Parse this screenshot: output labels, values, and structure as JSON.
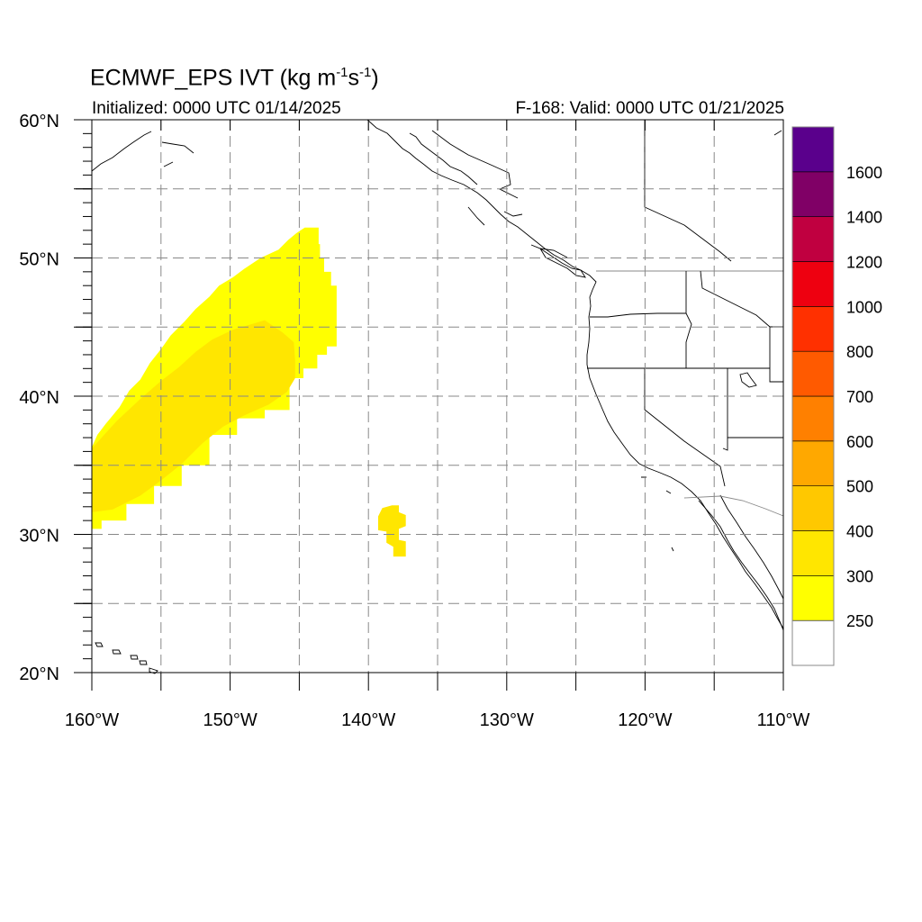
{
  "title": {
    "main": "ECMWF_EPS IVT (kg m",
    "exp1": "-1",
    "mid": "s",
    "exp2": "-1",
    "end": ")"
  },
  "subtitle_left": "Initialized: 0000 UTC 01/14/2025",
  "subtitle_right": "F-168: Valid: 0000 UTC 01/21/2025",
  "map": {
    "lon_range": [
      -160,
      -110
    ],
    "lat_range": [
      20,
      60
    ],
    "lon_labels": [
      {
        "lon": -160,
        "text": "160°W"
      },
      {
        "lon": -150,
        "text": "150°W"
      },
      {
        "lon": -140,
        "text": "140°W"
      },
      {
        "lon": -130,
        "text": "130°W"
      },
      {
        "lon": -120,
        "text": "120°W"
      },
      {
        "lon": -110,
        "text": "110°W"
      }
    ],
    "lat_labels": [
      {
        "lat": 60,
        "text": "60°N"
      },
      {
        "lat": 50,
        "text": "50°N"
      },
      {
        "lat": 40,
        "text": "40°N"
      },
      {
        "lat": 30,
        "text": "30°N"
      },
      {
        "lat": 20,
        "text": "20°N"
      }
    ],
    "gridline_style": "dashed",
    "gridline_lons": [
      -155,
      -150,
      -145,
      -140,
      -135,
      -130,
      -125,
      -120,
      -115
    ],
    "gridline_lats": [
      25,
      30,
      35,
      40,
      45,
      50,
      55
    ],
    "ivt_fields": [
      {
        "level": "250-300",
        "color": "#ffff00",
        "outline": [
          [
            -160,
            30.4
          ],
          [
            -159.3,
            30.4
          ],
          [
            -159.3,
            31
          ],
          [
            -157.5,
            31
          ],
          [
            -157.5,
            32.2
          ],
          [
            -155.5,
            32.2
          ],
          [
            -155.5,
            33.5
          ],
          [
            -153.5,
            33.5
          ],
          [
            -153.5,
            35
          ],
          [
            -151.5,
            35
          ],
          [
            -151.5,
            37.2
          ],
          [
            -149.5,
            37.2
          ],
          [
            -149.5,
            38.4
          ],
          [
            -147.5,
            38.4
          ],
          [
            -147.5,
            39
          ],
          [
            -145.7,
            39
          ],
          [
            -145.7,
            41.3
          ],
          [
            -144.7,
            41.3
          ],
          [
            -144.7,
            42
          ],
          [
            -143.7,
            42
          ],
          [
            -143.7,
            43
          ],
          [
            -143,
            43
          ],
          [
            -143,
            43.6
          ],
          [
            -142.3,
            43.6
          ],
          [
            -142.3,
            45.3
          ],
          [
            -142.3,
            48
          ],
          [
            -142.7,
            48
          ],
          [
            -142.7,
            49
          ],
          [
            -143.2,
            49
          ],
          [
            -143.2,
            50
          ],
          [
            -143.5,
            50
          ],
          [
            -143.5,
            51
          ],
          [
            -143.6,
            51
          ],
          [
            -143.6,
            52.2
          ],
          [
            -144.6,
            52.2
          ],
          [
            -145.2,
            51.8
          ],
          [
            -145.8,
            51.3
          ],
          [
            -146.5,
            50.6
          ],
          [
            -147.8,
            50
          ],
          [
            -149,
            49.2
          ],
          [
            -149.8,
            48.6
          ],
          [
            -150.8,
            48
          ],
          [
            -151.5,
            47.2
          ],
          [
            -152.5,
            46.3
          ],
          [
            -153.3,
            45.4
          ],
          [
            -154.3,
            44.4
          ],
          [
            -155,
            43.4
          ],
          [
            -155.8,
            42.4
          ],
          [
            -156.5,
            41.2
          ],
          [
            -157.3,
            40.4
          ],
          [
            -158,
            39.2
          ],
          [
            -159,
            38
          ],
          [
            -159.6,
            37.2
          ],
          [
            -160,
            36.3
          ]
        ]
      },
      {
        "level": "300-400",
        "color": "#ffe600",
        "outline": [
          [
            -160,
            31.6
          ],
          [
            -158.5,
            31.8
          ],
          [
            -156.5,
            32.8
          ],
          [
            -155,
            33.9
          ],
          [
            -153.5,
            35.1
          ],
          [
            -152,
            36.6
          ],
          [
            -150.5,
            37.8
          ],
          [
            -149,
            38.6
          ],
          [
            -147.2,
            39.4
          ],
          [
            -145.9,
            40.3
          ],
          [
            -145.3,
            41.3
          ],
          [
            -145.3,
            42.6
          ],
          [
            -145.4,
            43.9
          ],
          [
            -146.2,
            44.6
          ],
          [
            -147.5,
            45.5
          ],
          [
            -148.5,
            45.2
          ],
          [
            -149.8,
            44.8
          ],
          [
            -151.3,
            44.1
          ],
          [
            -152.5,
            43.2
          ],
          [
            -153.7,
            42.1
          ],
          [
            -155,
            41.1
          ],
          [
            -156.5,
            39.8
          ],
          [
            -158.2,
            38.2
          ],
          [
            -159.3,
            37
          ],
          [
            -160,
            36.2
          ]
        ]
      },
      {
        "level": "300-400",
        "color": "#ffe600",
        "outline": [
          [
            -139,
            31.9
          ],
          [
            -138.3,
            32.1
          ],
          [
            -137.8,
            32.1
          ],
          [
            -137.8,
            31.6
          ],
          [
            -137.3,
            31.4
          ],
          [
            -137.3,
            30.6
          ],
          [
            -137.8,
            30.4
          ],
          [
            -137.8,
            29.6
          ],
          [
            -137.3,
            29.5
          ],
          [
            -137.3,
            28.4
          ],
          [
            -138.2,
            28.4
          ],
          [
            -138.2,
            29.1
          ],
          [
            -138.7,
            29.4
          ],
          [
            -138.7,
            30.2
          ],
          [
            -139.3,
            30.3
          ],
          [
            -139.3,
            31.3
          ]
        ]
      }
    ]
  },
  "colorbar": {
    "labels": [
      "250",
      "300",
      "400",
      "500",
      "600",
      "700",
      "800",
      "1000",
      "1200",
      "1400",
      "1600"
    ],
    "colors": [
      "#ffffff",
      "#ffff00",
      "#ffe600",
      "#ffc800",
      "#ffa800",
      "#ff8000",
      "#ff5a00",
      "#ff3000",
      "#ee0010",
      "#c00040",
      "#800066",
      "#5a008c"
    ]
  }
}
